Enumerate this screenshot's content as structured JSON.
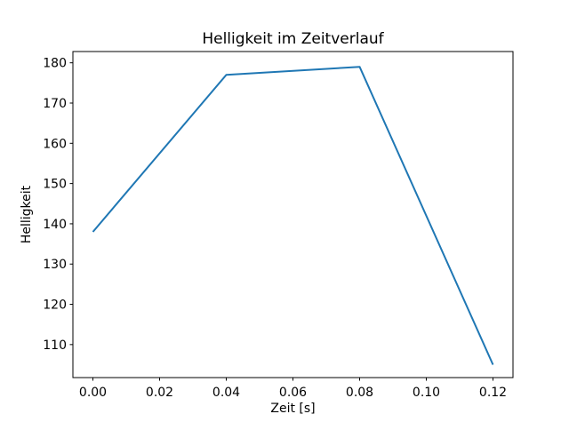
{
  "chart_data": {
    "type": "line",
    "title": "Helligkeit im Zeitverlauf",
    "xlabel": "Zeit [s]",
    "ylabel": "Helligkeit",
    "x": [
      0.0,
      0.04,
      0.08,
      0.12
    ],
    "y": [
      138,
      177,
      179,
      105
    ],
    "series": [
      {
        "name": "Helligkeit",
        "x": [
          0.0,
          0.04,
          0.08,
          0.12
        ],
        "values": [
          138,
          177,
          179,
          105
        ]
      }
    ],
    "xticks": [
      0.0,
      0.02,
      0.04,
      0.06,
      0.08,
      0.1,
      0.12
    ],
    "xtick_labels": [
      "0.00",
      "0.02",
      "0.04",
      "0.06",
      "0.08",
      "0.10",
      "0.12"
    ],
    "yticks": [
      110,
      120,
      130,
      140,
      150,
      160,
      170,
      180
    ],
    "ytick_labels": [
      "110",
      "120",
      "130",
      "140",
      "150",
      "160",
      "170",
      "180"
    ],
    "xlim": [
      -0.006,
      0.126
    ],
    "ylim": [
      101.8,
      182.8
    ],
    "grid": false,
    "legend": null,
    "line_color": "#1f77b4",
    "axes_color": "#000000",
    "background_color": "#ffffff"
  }
}
